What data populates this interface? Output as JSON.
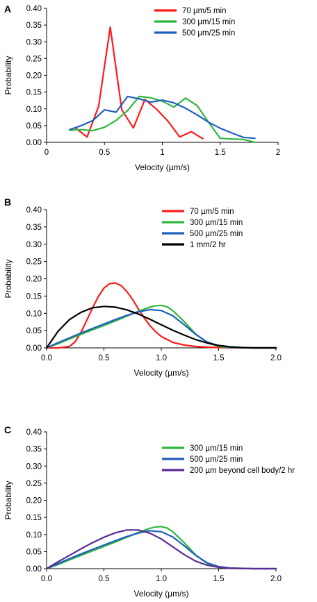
{
  "chart_data": [
    {
      "panel": "A",
      "type": "line",
      "xlabel": "Velocity (µm/s)",
      "ylabel": "Probability",
      "xlim": [
        0,
        2
      ],
      "ylim": [
        0,
        0.4
      ],
      "xticks": [
        "0",
        "0.5",
        "1",
        "1.5",
        "2"
      ],
      "yticks": [
        "0.00",
        "0.05",
        "0.10",
        "0.15",
        "0.20",
        "0.25",
        "0.30",
        "0.35",
        "0.40"
      ],
      "legend_position": "top-right",
      "series": [
        {
          "name": "70 µm/5 min",
          "color": "#ff1a1a",
          "x": [
            0.25,
            0.35,
            0.45,
            0.55,
            0.65,
            0.75,
            0.85,
            0.95,
            1.05,
            1.15,
            1.25,
            1.35
          ],
          "y": [
            0.043,
            0.016,
            0.108,
            0.344,
            0.097,
            0.043,
            0.128,
            0.099,
            0.063,
            0.016,
            0.032,
            0.011
          ]
        },
        {
          "name": "300 µm/15 min",
          "color": "#2db83d",
          "x": [
            0.2,
            0.3,
            0.4,
            0.5,
            0.6,
            0.7,
            0.8,
            0.9,
            1.0,
            1.1,
            1.2,
            1.3,
            1.4,
            1.5,
            1.6,
            1.7,
            1.8
          ],
          "y": [
            0.036,
            0.038,
            0.035,
            0.045,
            0.065,
            0.095,
            0.137,
            0.133,
            0.123,
            0.105,
            0.132,
            0.11,
            0.06,
            0.012,
            0.01,
            0.009,
            0.0
          ]
        },
        {
          "name": "500 µm/25 min",
          "color": "#1f5fbf",
          "x": [
            0.2,
            0.3,
            0.4,
            0.5,
            0.6,
            0.7,
            0.8,
            0.9,
            1.0,
            1.1,
            1.2,
            1.3,
            1.4,
            1.5,
            1.6,
            1.7,
            1.8
          ],
          "y": [
            0.038,
            0.05,
            0.065,
            0.097,
            0.09,
            0.137,
            0.13,
            0.12,
            0.126,
            0.118,
            0.102,
            0.082,
            0.06,
            0.042,
            0.028,
            0.015,
            0.012
          ]
        }
      ]
    },
    {
      "panel": "B",
      "type": "line",
      "xlabel": "Velocity (µm/s)",
      "ylabel": "Probability",
      "xlim": [
        0,
        2
      ],
      "ylim": [
        0,
        0.4
      ],
      "xticks": [
        "0.0",
        "0.5",
        "1.0",
        "1.5",
        "2.0"
      ],
      "yticks": [
        "0.00",
        "0.05",
        "0.10",
        "0.15",
        "0.20",
        "0.25",
        "0.30",
        "0.35",
        "0.40"
      ],
      "legend_position": "top-right",
      "series": [
        {
          "name": "70 µm/5 min",
          "color": "#ff1a1a",
          "x": [
            0.0,
            0.1,
            0.2,
            0.25,
            0.3,
            0.35,
            0.4,
            0.45,
            0.5,
            0.55,
            0.6,
            0.65,
            0.7,
            0.75,
            0.8,
            0.85,
            0.9,
            0.95,
            1.0,
            1.1,
            1.2,
            1.3,
            1.4,
            1.5,
            1.6,
            1.8,
            2.0
          ],
          "y": [
            0.0,
            0.0,
            0.004,
            0.018,
            0.045,
            0.08,
            0.115,
            0.148,
            0.173,
            0.186,
            0.188,
            0.18,
            0.163,
            0.14,
            0.113,
            0.087,
            0.065,
            0.047,
            0.033,
            0.016,
            0.008,
            0.004,
            0.002,
            0.001,
            0.0,
            0.0,
            0.0
          ]
        },
        {
          "name": "300 µm/15 min",
          "color": "#2db83d",
          "x": [
            0.0,
            0.1,
            0.2,
            0.3,
            0.4,
            0.5,
            0.6,
            0.7,
            0.8,
            0.9,
            0.95,
            1.0,
            1.05,
            1.1,
            1.2,
            1.3,
            1.4,
            1.5,
            1.6,
            1.8,
            2.0
          ],
          "y": [
            0.0,
            0.012,
            0.026,
            0.039,
            0.052,
            0.065,
            0.078,
            0.092,
            0.106,
            0.118,
            0.122,
            0.123,
            0.119,
            0.108,
            0.076,
            0.04,
            0.015,
            0.004,
            0.001,
            0.0,
            0.0
          ]
        },
        {
          "name": "500 µm/25 min",
          "color": "#1f5fbf",
          "x": [
            0.0,
            0.1,
            0.2,
            0.3,
            0.4,
            0.5,
            0.6,
            0.7,
            0.8,
            0.9,
            1.0,
            1.1,
            1.2,
            1.3,
            1.4,
            1.5,
            1.6,
            1.8,
            2.0
          ],
          "y": [
            0.0,
            0.015,
            0.029,
            0.043,
            0.056,
            0.069,
            0.082,
            0.094,
            0.104,
            0.111,
            0.108,
            0.093,
            0.067,
            0.039,
            0.017,
            0.006,
            0.002,
            0.0,
            0.0
          ]
        },
        {
          "name": "1 mm/2 hr",
          "color": "#000000",
          "x": [
            0.0,
            0.1,
            0.2,
            0.3,
            0.4,
            0.5,
            0.6,
            0.7,
            0.8,
            0.9,
            1.0,
            1.1,
            1.2,
            1.3,
            1.4,
            1.5,
            1.6,
            1.7,
            1.8,
            2.0
          ],
          "y": [
            0.0,
            0.048,
            0.082,
            0.103,
            0.116,
            0.12,
            0.118,
            0.11,
            0.098,
            0.083,
            0.067,
            0.051,
            0.037,
            0.024,
            0.014,
            0.007,
            0.003,
            0.001,
            0.0,
            0.0
          ]
        }
      ]
    },
    {
      "panel": "C",
      "type": "line",
      "xlabel": "Velocity (µm/s)",
      "ylabel": "Probability",
      "xlim": [
        0,
        2
      ],
      "ylim": [
        0,
        0.4
      ],
      "xticks": [
        "0.0",
        "0.5",
        "1.0",
        "1.5",
        "2.0"
      ],
      "yticks": [
        "0.00",
        "0.05",
        "0.10",
        "0.15",
        "0.20",
        "0.25",
        "0.30",
        "0.35",
        "0.40"
      ],
      "legend_position": "top-right",
      "series": [
        {
          "name": "300 µm/15 min",
          "color": "#2db83d",
          "x": [
            0.0,
            0.1,
            0.2,
            0.3,
            0.4,
            0.5,
            0.6,
            0.7,
            0.8,
            0.9,
            0.95,
            1.0,
            1.05,
            1.1,
            1.2,
            1.3,
            1.4,
            1.5,
            1.6,
            1.8,
            2.0
          ],
          "y": [
            0.0,
            0.012,
            0.026,
            0.039,
            0.052,
            0.065,
            0.078,
            0.092,
            0.106,
            0.118,
            0.122,
            0.123,
            0.119,
            0.108,
            0.076,
            0.04,
            0.015,
            0.004,
            0.001,
            0.0,
            0.0
          ]
        },
        {
          "name": "500 µm/25 min",
          "color": "#1f5fbf",
          "x": [
            0.0,
            0.1,
            0.2,
            0.3,
            0.4,
            0.5,
            0.6,
            0.7,
            0.8,
            0.9,
            1.0,
            1.1,
            1.2,
            1.3,
            1.4,
            1.5,
            1.6,
            1.8,
            2.0
          ],
          "y": [
            0.0,
            0.015,
            0.029,
            0.043,
            0.056,
            0.069,
            0.082,
            0.094,
            0.104,
            0.111,
            0.108,
            0.093,
            0.067,
            0.039,
            0.017,
            0.006,
            0.002,
            0.0,
            0.0
          ]
        },
        {
          "name": "200 µm beyond cell body/2 hr",
          "color": "#5b2a92",
          "x": [
            0.0,
            0.1,
            0.2,
            0.3,
            0.4,
            0.5,
            0.6,
            0.7,
            0.8,
            0.9,
            1.0,
            1.1,
            1.2,
            1.3,
            1.4,
            1.5,
            1.6,
            1.8,
            2.0
          ],
          "y": [
            0.0,
            0.02,
            0.039,
            0.058,
            0.076,
            0.092,
            0.105,
            0.113,
            0.113,
            0.104,
            0.087,
            0.064,
            0.041,
            0.022,
            0.01,
            0.004,
            0.001,
            0.0,
            0.0
          ]
        }
      ]
    }
  ]
}
